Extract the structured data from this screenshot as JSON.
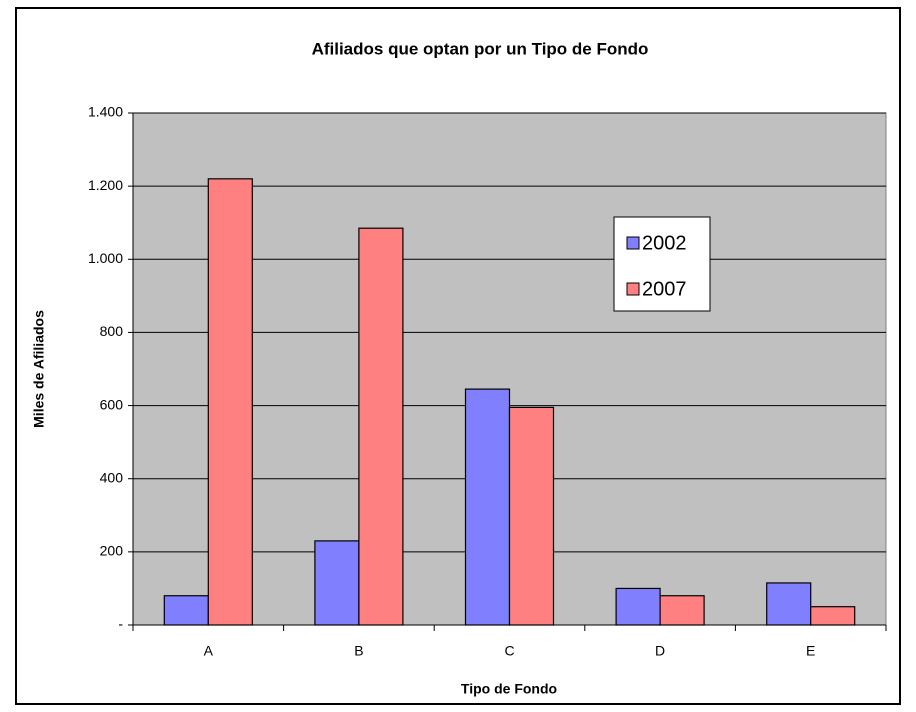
{
  "chart_data": {
    "type": "bar",
    "title": "Afiliados que optan por un Tipo de Fondo",
    "xlabel": "Tipo de Fondo",
    "ylabel": "Miles de Afiliados",
    "categories": [
      "A",
      "B",
      "C",
      "D",
      "E"
    ],
    "series": [
      {
        "name": "2002",
        "color": "#8080ff",
        "values": [
          80,
          230,
          645,
          100,
          115
        ]
      },
      {
        "name": "2007",
        "color": "#ff8080",
        "values": [
          1220,
          1085,
          595,
          80,
          50
        ]
      }
    ],
    "ylim": [
      0,
      1400
    ],
    "yticks": [
      {
        "value": 0,
        "label": "-"
      },
      200,
      400,
      600,
      800,
      {
        "value": 1000,
        "label": "1.000"
      },
      {
        "value": 1200,
        "label": "1.200"
      },
      {
        "value": 1400,
        "label": "1.400"
      }
    ],
    "grid": true
  }
}
